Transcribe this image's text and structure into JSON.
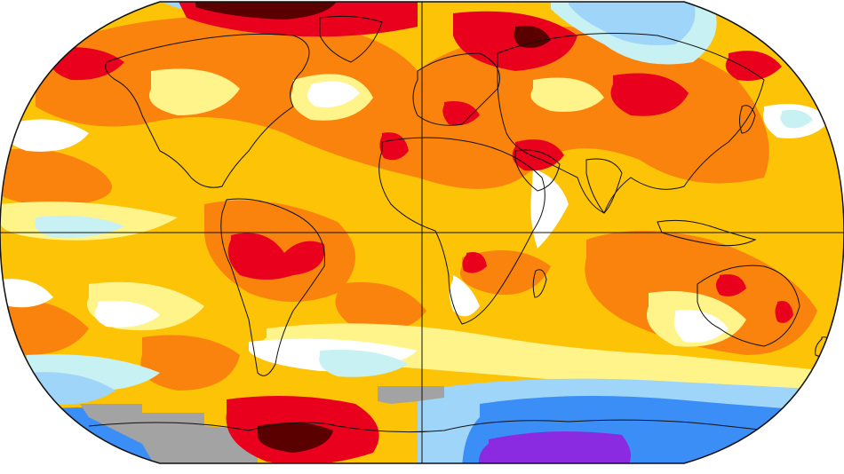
{
  "map": {
    "projection": "robinson",
    "kind": "global-temperature-anomaly",
    "colors": {
      "background": "#ffffff",
      "extreme_hot": "#5a0000",
      "very_hot": "#e8001c",
      "hot": "#f9830c",
      "warm": "#fcc307",
      "mild": "#fff48a",
      "neutral": "#ffffff",
      "cool": "#c8f1f4",
      "cold": "#9ed5f8",
      "very_cold": "#3a8ef5",
      "extreme_cold": "#8a2be2",
      "no_data": "#a3a3a3",
      "coastline": "#111111",
      "graticule": "#111111",
      "border": "#111111"
    },
    "legend_visible": false,
    "graticule": {
      "equator": true,
      "prime_meridian": true
    }
  }
}
